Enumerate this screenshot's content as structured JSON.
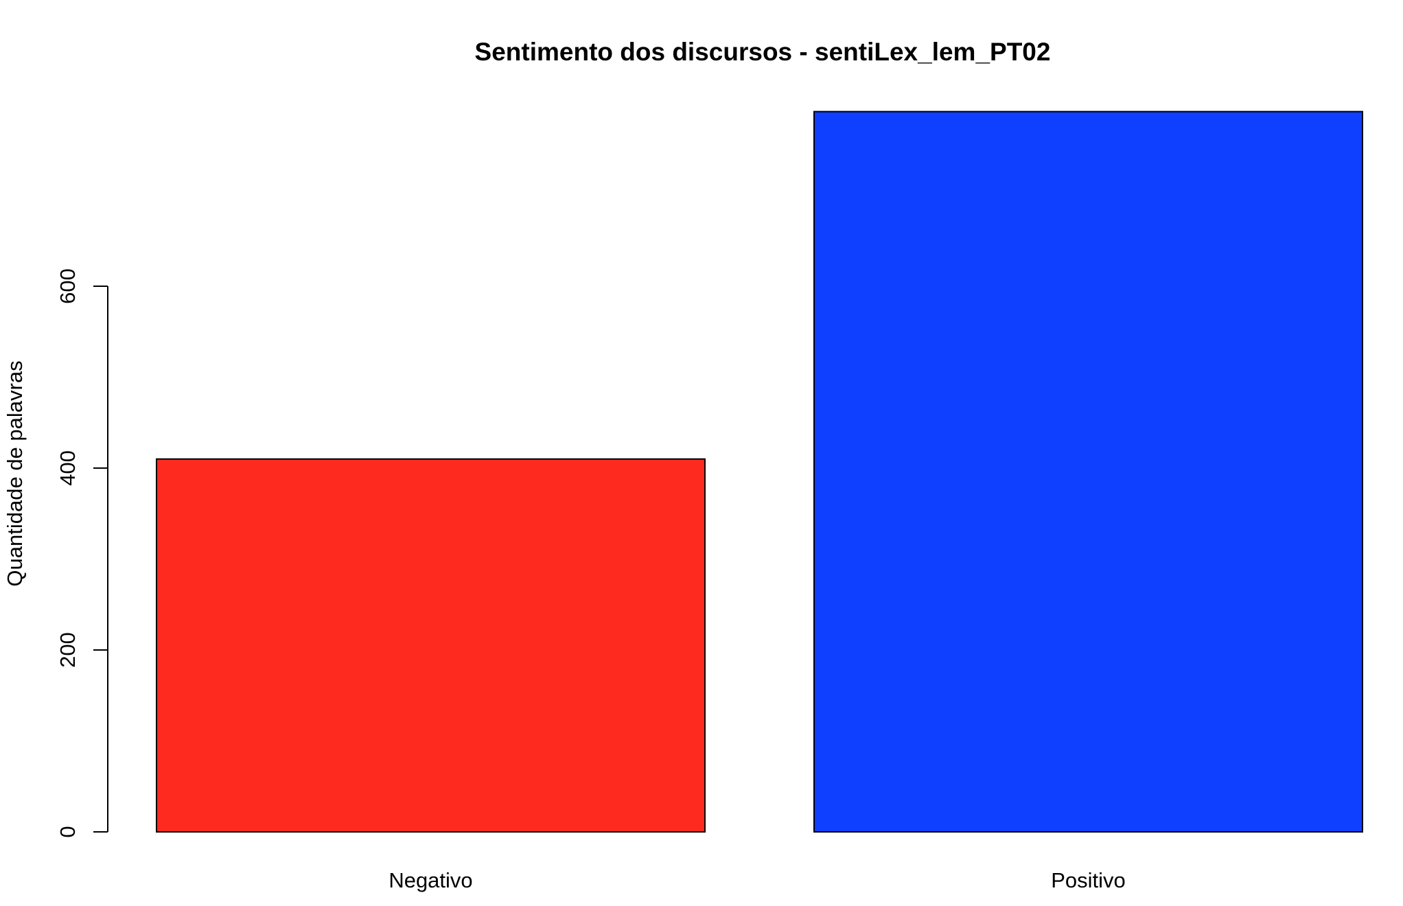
{
  "chart_data": {
    "type": "bar",
    "title": "Sentimento dos discursos - sentiLex_lem_PT02",
    "xlabel": "",
    "ylabel": "Quantidade de palavras",
    "categories": [
      "Negativo",
      "Positivo"
    ],
    "values": [
      410,
      792
    ],
    "colors": [
      "#ff2a1f",
      "#1040ff"
    ],
    "yticks": [
      0,
      200,
      400,
      600
    ],
    "ytick_labels": [
      "0",
      "200",
      "400",
      "600"
    ],
    "ylim": [
      0,
      800
    ],
    "grid": false,
    "legend": "none"
  }
}
